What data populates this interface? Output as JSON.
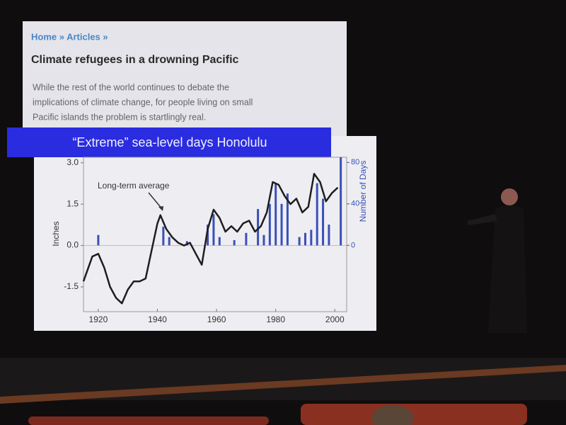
{
  "article": {
    "breadcrumb": "Home » Articles »",
    "title": "Climate refugees in a drowning Pacific",
    "lines": [
      "While the rest of the world continues to debate the",
      "implications of climate change, for people living on small",
      "Pacific islands the problem is startlingly real."
    ]
  },
  "chart_data": {
    "type": "line",
    "title": "“Extreme” sea-level days Honolulu",
    "y_label": "Inches",
    "y2_label": "Number of Days",
    "annotation": "Long-term average",
    "xlim": [
      1915,
      2004
    ],
    "xticks": [
      1920,
      1940,
      1960,
      1980,
      2000
    ],
    "ylim": [
      -2.4,
      3.2
    ],
    "yticks": [
      -1.5,
      {
        "value": 0,
        "label": "0.0"
      },
      1.5,
      {
        "value": 3,
        "label": "3.0"
      }
    ],
    "y2lim": [
      -64,
      85
    ],
    "y2ticks": [
      0,
      40,
      80
    ],
    "line": {
      "color": "#1e1e1e",
      "x": [
        1915,
        1918,
        1920,
        1922,
        1924,
        1926,
        1928,
        1930,
        1932,
        1934,
        1936,
        1938,
        1940,
        1941,
        1943,
        1945,
        1947,
        1949,
        1951,
        1953,
        1955,
        1957,
        1959,
        1961,
        1963,
        1965,
        1967,
        1969,
        1971,
        1973,
        1975,
        1977,
        1979,
        1981,
        1983,
        1985,
        1987,
        1989,
        1991,
        1993,
        1995,
        1997,
        1999,
        2001
      ],
      "values": [
        -1.3,
        -0.4,
        -0.3,
        -0.8,
        -1.5,
        -1.9,
        -2.1,
        -1.6,
        -1.3,
        -1.3,
        -1.2,
        -0.2,
        0.8,
        1.1,
        0.6,
        0.3,
        0.1,
        0.0,
        0.1,
        -0.3,
        -0.7,
        0.6,
        1.3,
        1.0,
        0.5,
        0.7,
        0.5,
        0.8,
        0.9,
        0.5,
        0.7,
        1.2,
        2.3,
        2.2,
        1.8,
        1.5,
        1.7,
        1.2,
        1.4,
        2.6,
        2.3,
        1.6,
        1.9,
        2.1
      ]
    },
    "bars": {
      "color": "#3a4fb8",
      "axis": "y2",
      "x": [
        1920,
        1942,
        1944,
        1950,
        1957,
        1959,
        1961,
        1966,
        1970,
        1974,
        1976,
        1978,
        1980,
        1982,
        1984,
        1988,
        1990,
        1992,
        1994,
        1996,
        1998,
        2002
      ],
      "values": [
        10,
        18,
        8,
        4,
        20,
        30,
        8,
        5,
        12,
        35,
        10,
        40,
        60,
        40,
        50,
        8,
        12,
        15,
        60,
        45,
        20,
        85
      ]
    }
  }
}
